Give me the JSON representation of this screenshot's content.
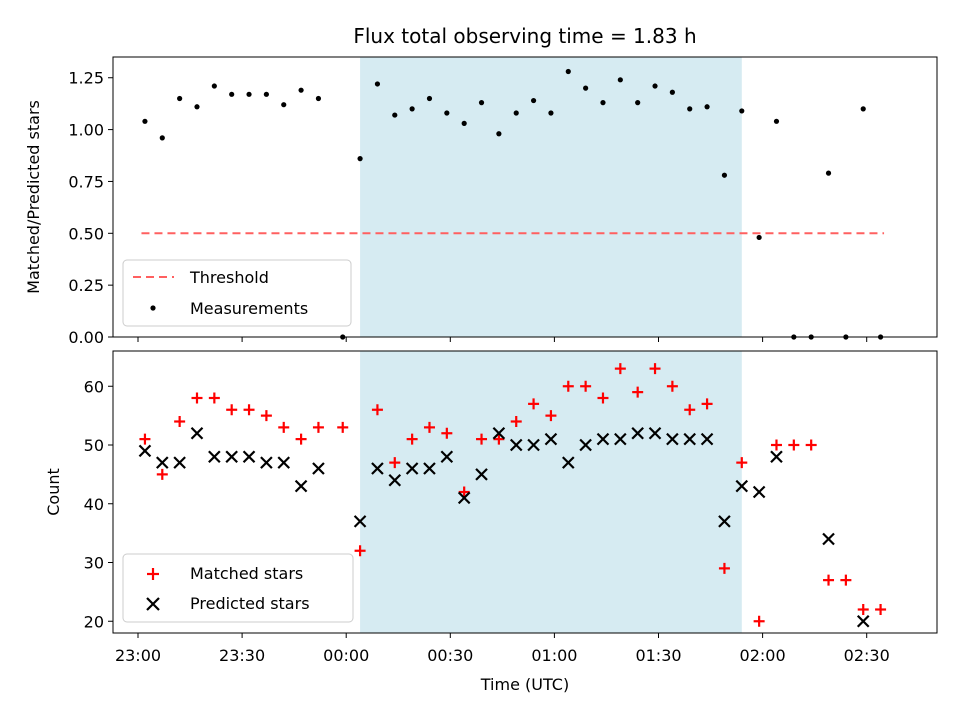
{
  "chart_data": [
    {
      "type": "scatter",
      "title": "Flux total observing time = 1.83 h",
      "xlabel": "",
      "ylabel": "Matched/Predicted stars",
      "ylim": [
        0,
        1.35
      ],
      "yticks": [
        "0.00",
        "0.25",
        "0.50",
        "0.75",
        "1.00",
        "1.25"
      ],
      "shaded_interval": {
        "start": "00:04",
        "end": "01:54",
        "color": "#add8e6"
      },
      "threshold": {
        "name": "Threshold",
        "value": 0.5,
        "x_start": "23:01",
        "x_end": "02:35",
        "color": "#ff6060"
      },
      "legend": {
        "position": "lower-left",
        "entries": [
          "Threshold",
          "Measurements"
        ]
      },
      "series": [
        {
          "name": "Measurements",
          "marker": "dot",
          "color": "#000000",
          "points": [
            [
              "23:02",
              1.04
            ],
            [
              "23:07",
              0.96
            ],
            [
              "23:12",
              1.15
            ],
            [
              "23:17",
              1.11
            ],
            [
              "23:22",
              1.21
            ],
            [
              "23:27",
              1.17
            ],
            [
              "23:32",
              1.17
            ],
            [
              "23:37",
              1.17
            ],
            [
              "23:42",
              1.12
            ],
            [
              "23:47",
              1.19
            ],
            [
              "23:52",
              1.15
            ],
            [
              "23:59",
              0.0
            ],
            [
              "00:04",
              0.86
            ],
            [
              "00:09",
              1.22
            ],
            [
              "00:14",
              1.07
            ],
            [
              "00:19",
              1.1
            ],
            [
              "00:24",
              1.15
            ],
            [
              "00:29",
              1.08
            ],
            [
              "00:34",
              1.03
            ],
            [
              "00:39",
              1.13
            ],
            [
              "00:44",
              0.98
            ],
            [
              "00:49",
              1.08
            ],
            [
              "00:54",
              1.14
            ],
            [
              "00:59",
              1.08
            ],
            [
              "01:04",
              1.28
            ],
            [
              "01:09",
              1.2
            ],
            [
              "01:14",
              1.13
            ],
            [
              "01:19",
              1.24
            ],
            [
              "01:24",
              1.13
            ],
            [
              "01:29",
              1.21
            ],
            [
              "01:34",
              1.18
            ],
            [
              "01:39",
              1.1
            ],
            [
              "01:44",
              1.11
            ],
            [
              "01:49",
              0.78
            ],
            [
              "01:54",
              1.09
            ],
            [
              "01:59",
              0.48
            ],
            [
              "02:04",
              1.04
            ],
            [
              "02:09",
              0.0
            ],
            [
              "02:14",
              0.0
            ],
            [
              "02:19",
              0.79
            ],
            [
              "02:24",
              0.0
            ],
            [
              "02:29",
              1.1
            ],
            [
              "02:34",
              0.0
            ]
          ]
        }
      ]
    },
    {
      "type": "scatter",
      "title": "",
      "xlabel": "Time (UTC)",
      "ylabel": "Count",
      "ylim": [
        18,
        66
      ],
      "yticks": [
        "20",
        "30",
        "40",
        "50",
        "60"
      ],
      "xticks": [
        "23:00",
        "23:30",
        "00:00",
        "00:30",
        "01:00",
        "01:30",
        "02:00",
        "02:30"
      ],
      "shaded_interval": {
        "start": "00:04",
        "end": "01:54",
        "color": "#add8e6"
      },
      "legend": {
        "position": "lower-left",
        "entries": [
          "Matched stars",
          "Predicted stars"
        ]
      },
      "series": [
        {
          "name": "Matched stars",
          "marker": "plus",
          "color": "#ff0000",
          "points": [
            [
              "23:02",
              51
            ],
            [
              "23:07",
              45
            ],
            [
              "23:12",
              54
            ],
            [
              "23:17",
              58
            ],
            [
              "23:22",
              58
            ],
            [
              "23:27",
              56
            ],
            [
              "23:32",
              56
            ],
            [
              "23:37",
              55
            ],
            [
              "23:42",
              53
            ],
            [
              "23:47",
              51
            ],
            [
              "23:52",
              53
            ],
            [
              "23:59",
              53
            ],
            [
              "00:04",
              32
            ],
            [
              "00:09",
              56
            ],
            [
              "00:14",
              47
            ],
            [
              "00:19",
              51
            ],
            [
              "00:24",
              53
            ],
            [
              "00:29",
              52
            ],
            [
              "00:34",
              42
            ],
            [
              "00:39",
              51
            ],
            [
              "00:44",
              51
            ],
            [
              "00:49",
              54
            ],
            [
              "00:54",
              57
            ],
            [
              "00:59",
              55
            ],
            [
              "01:04",
              60
            ],
            [
              "01:09",
              60
            ],
            [
              "01:14",
              58
            ],
            [
              "01:19",
              63
            ],
            [
              "01:24",
              59
            ],
            [
              "01:29",
              63
            ],
            [
              "01:34",
              60
            ],
            [
              "01:39",
              56
            ],
            [
              "01:44",
              57
            ],
            [
              "01:49",
              29
            ],
            [
              "01:54",
              47
            ],
            [
              "01:59",
              20
            ],
            [
              "02:04",
              50
            ],
            [
              "02:09",
              50
            ],
            [
              "02:14",
              50
            ],
            [
              "02:19",
              27
            ],
            [
              "02:24",
              27
            ],
            [
              "02:29",
              22
            ],
            [
              "02:34",
              22
            ]
          ]
        },
        {
          "name": "Predicted stars",
          "marker": "x",
          "color": "#000000",
          "points": [
            [
              "23:02",
              49
            ],
            [
              "23:07",
              47
            ],
            [
              "23:12",
              47
            ],
            [
              "23:17",
              52
            ],
            [
              "23:22",
              48
            ],
            [
              "23:27",
              48
            ],
            [
              "23:32",
              48
            ],
            [
              "23:37",
              47
            ],
            [
              "23:42",
              47
            ],
            [
              "23:47",
              43
            ],
            [
              "23:52",
              46
            ],
            [
              "00:04",
              37
            ],
            [
              "00:09",
              46
            ],
            [
              "00:14",
              44
            ],
            [
              "00:19",
              46
            ],
            [
              "00:24",
              46
            ],
            [
              "00:29",
              48
            ],
            [
              "00:34",
              41
            ],
            [
              "00:39",
              45
            ],
            [
              "00:44",
              52
            ],
            [
              "00:49",
              50
            ],
            [
              "00:54",
              50
            ],
            [
              "00:59",
              51
            ],
            [
              "01:04",
              47
            ],
            [
              "01:09",
              50
            ],
            [
              "01:14",
              51
            ],
            [
              "01:19",
              51
            ],
            [
              "01:24",
              52
            ],
            [
              "01:29",
              52
            ],
            [
              "01:34",
              51
            ],
            [
              "01:39",
              51
            ],
            [
              "01:44",
              51
            ],
            [
              "01:49",
              37
            ],
            [
              "01:54",
              43
            ],
            [
              "01:59",
              42
            ],
            [
              "02:04",
              48
            ],
            [
              "02:19",
              34
            ],
            [
              "02:29",
              20
            ]
          ]
        }
      ]
    }
  ]
}
